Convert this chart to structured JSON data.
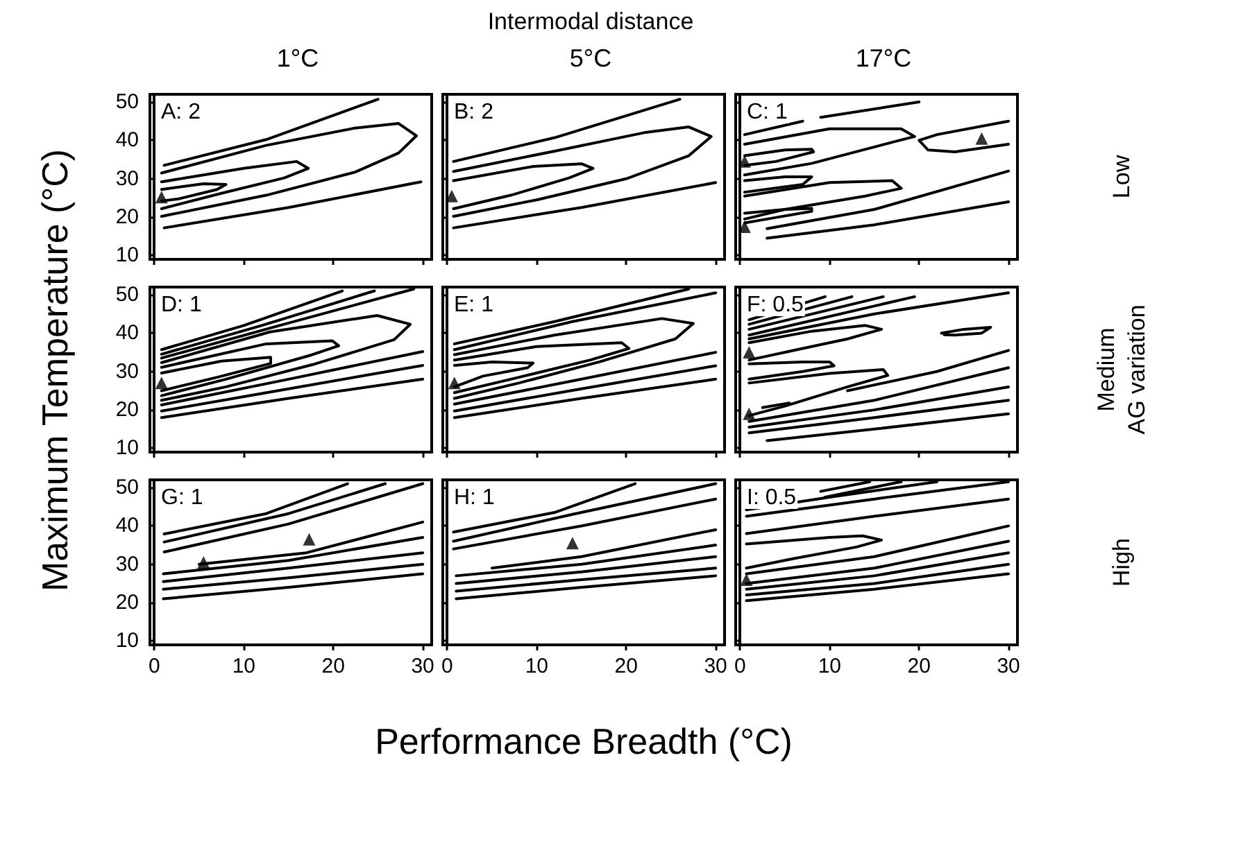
{
  "chart_data": [
    {
      "type": "line",
      "subtitle": "1°C",
      "annotations": [
        "A: 2"
      ],
      "xlim": [
        -0.5,
        31
      ],
      "ylim": [
        9,
        52
      ],
      "xticks": [
        0,
        10,
        20,
        30
      ],
      "yticks": [
        10,
        20,
        30,
        40,
        50
      ],
      "tick_labels": "y",
      "marker": "none",
      "series": [
        {
          "color": "#000000",
          "x": [
            1.1,
            12.5,
            25
          ],
          "values": [
            33.5,
            40.2,
            50.7
          ]
        },
        {
          "color": "#000000",
          "x": [
            0.8,
            12.5,
            22.4,
            27.3,
            29.3,
            27.3,
            22.4,
            12.5,
            0.8
          ],
          "values": [
            31.5,
            38.7,
            43.2,
            44.4,
            41.2,
            36.7,
            31.7,
            25.7,
            20.2
          ]
        },
        {
          "color": "#000000",
          "x": [
            0.8,
            10,
            15.9,
            17.2,
            14.5,
            7.5,
            0.8
          ],
          "values": [
            29.2,
            32.7,
            34.5,
            32.7,
            30.2,
            26.2,
            22.2
          ]
        },
        {
          "color": "#000000",
          "x": [
            0.8,
            5.5,
            8,
            7,
            2.6,
            0.8
          ],
          "values": [
            27.2,
            28.7,
            28.5,
            27.2,
            24.7,
            24.2
          ]
        },
        {
          "color": "#000000",
          "x": [
            1.1,
            15,
            29.8
          ],
          "values": [
            17.2,
            22.5,
            29.2
          ]
        },
        {
          "type": "scatter",
          "marker": "triangle",
          "color": "#000000",
          "x": [
            0.8
          ],
          "values": [
            25.2
          ]
        }
      ]
    },
    {
      "type": "line",
      "title": "Intermodal distance",
      "subtitle": "5°C",
      "annotations": [
        "B: 2"
      ],
      "xlim": [
        -0.5,
        31
      ],
      "ylim": [
        9,
        52
      ],
      "xticks": [
        0,
        10,
        20,
        30
      ],
      "yticks": [
        10,
        20,
        30,
        40,
        50
      ],
      "tick_labels": false,
      "marker": "none",
      "series": [
        {
          "color": "#000000",
          "x": [
            0.7,
            12,
            26
          ],
          "values": [
            34.5,
            40.7,
            50.7
          ]
        },
        {
          "color": "#000000",
          "x": [
            0.7,
            12,
            22,
            27,
            29.5,
            27,
            20,
            10,
            0.7
          ],
          "values": [
            31.9,
            37.2,
            42,
            43.5,
            41,
            36,
            30,
            24.5,
            20.2
          ]
        },
        {
          "color": "#000000",
          "x": [
            0.7,
            9.6,
            15,
            16.3,
            13.6,
            7.1,
            0.7
          ],
          "values": [
            29.5,
            33.2,
            33.9,
            32.7,
            30.2,
            25.7,
            22.2
          ]
        },
        {
          "color": "#000000",
          "x": [
            0.7,
            15,
            30
          ],
          "values": [
            17.2,
            22.5,
            29
          ]
        },
        {
          "type": "scatter",
          "marker": "triangle",
          "color": "#000000",
          "x": [
            0.5
          ],
          "values": [
            25.5
          ]
        }
      ]
    },
    {
      "type": "line",
      "subtitle": "17°C",
      "y2label": "Low",
      "annotations": [
        "C: 1"
      ],
      "xlim": [
        -0.5,
        31
      ],
      "ylim": [
        9,
        52
      ],
      "xticks": [
        0,
        10,
        20,
        30
      ],
      "yticks": [
        10,
        20,
        30,
        40,
        50
      ],
      "tick_labels": false,
      "marker": "none",
      "series": [
        {
          "color": "#000000",
          "x": [
            9,
            20
          ],
          "values": [
            46,
            50
          ]
        },
        {
          "color": "#000000",
          "x": [
            0.5,
            7
          ],
          "values": [
            41.5,
            45
          ]
        },
        {
          "color": "#000000",
          "x": [
            0.5,
            10,
            18,
            19.5,
            17,
            8,
            0.5
          ],
          "values": [
            39,
            43,
            43,
            41,
            39.5,
            34,
            31
          ]
        },
        {
          "color": "#000000",
          "x": [
            0.5,
            5,
            8,
            8.2,
            4,
            0.5
          ],
          "values": [
            36,
            37.5,
            37.7,
            37,
            34.5,
            33.5
          ]
        },
        {
          "color": "#000000",
          "x": [
            30,
            22,
            20,
            21,
            24,
            30
          ],
          "values": [
            45,
            41.5,
            40,
            37.5,
            37,
            39
          ]
        },
        {
          "color": "#000000",
          "x": [
            0.5,
            5,
            8,
            7,
            0.5
          ],
          "values": [
            29.5,
            30.5,
            30.5,
            28.5,
            26.5
          ]
        },
        {
          "color": "#000000",
          "x": [
            0.5,
            10,
            17,
            18,
            14,
            5,
            0.5
          ],
          "values": [
            25.5,
            29,
            29.5,
            27.5,
            25.5,
            22,
            19.5
          ]
        },
        {
          "color": "#000000",
          "x": [
            0.5,
            5,
            8,
            8,
            3,
            0.5
          ],
          "values": [
            21,
            22,
            22.3,
            21.5,
            19.5,
            18.5
          ]
        },
        {
          "color": "#000000",
          "x": [
            3,
            15,
            30
          ],
          "values": [
            17,
            22,
            32
          ]
        },
        {
          "color": "#000000",
          "x": [
            3,
            15,
            30
          ],
          "values": [
            14.5,
            18,
            24
          ]
        },
        {
          "type": "scatter",
          "marker": "triangle",
          "color": "#000000",
          "x": [
            0.5,
            0.5,
            27
          ],
          "values": [
            34.5,
            17.5,
            40.5
          ]
        }
      ]
    },
    {
      "type": "line",
      "ylabel": "Maximum Temperature (°C)",
      "annotations": [
        "D: 1"
      ],
      "xlim": [
        -0.5,
        31
      ],
      "ylim": [
        9,
        52
      ],
      "xticks": [
        0,
        10,
        20,
        30
      ],
      "yticks": [
        10,
        20,
        30,
        40,
        50
      ],
      "tick_labels": "y",
      "marker": "none",
      "series": [
        {
          "color": "#000000",
          "x": [
            0.8,
            10,
            21
          ],
          "values": [
            35.7,
            42,
            51
          ]
        },
        {
          "color": "#000000",
          "x": [
            0.8,
            12,
            24.6
          ],
          "values": [
            34.5,
            42,
            51
          ]
        },
        {
          "color": "#000000",
          "x": [
            0.8,
            14,
            29
          ],
          "values": [
            33.5,
            42,
            51.5
          ]
        },
        {
          "color": "#000000",
          "x": [
            0.8,
            12.9,
            24.9,
            28.6,
            26.8,
            18,
            8,
            0.8
          ],
          "values": [
            32.3,
            40.3,
            44.6,
            42.3,
            38.3,
            32,
            26,
            22.5
          ]
        },
        {
          "color": "#000000",
          "x": [
            0.8,
            12.5,
            19.9,
            20.6,
            17.4,
            8,
            0.8
          ],
          "values": [
            31.1,
            37.2,
            38,
            36.7,
            34.2,
            28,
            23.7
          ]
        },
        {
          "color": "#000000",
          "x": [
            0.8,
            7.5,
            13,
            13,
            7,
            0.8
          ],
          "values": [
            29.6,
            32.7,
            33.7,
            32.1,
            28.5,
            25
          ]
        },
        {
          "color": "#000000",
          "x": [
            0.8,
            15,
            30
          ],
          "values": [
            21.3,
            28,
            35.2
          ]
        },
        {
          "color": "#000000",
          "x": [
            0.8,
            15,
            30
          ],
          "values": [
            19.7,
            25.5,
            31.6
          ]
        },
        {
          "color": "#000000",
          "x": [
            0.8,
            15,
            30
          ],
          "values": [
            18,
            23,
            28
          ]
        },
        {
          "type": "scatter",
          "marker": "triangle",
          "color": "#000000",
          "x": [
            0.8
          ],
          "values": [
            27
          ]
        }
      ]
    },
    {
      "type": "line",
      "annotations": [
        "E: 1"
      ],
      "xlim": [
        -0.5,
        31
      ],
      "ylim": [
        9,
        52
      ],
      "xticks": [
        0,
        10,
        20,
        30
      ],
      "yticks": [
        10,
        20,
        30,
        40,
        50
      ],
      "tick_labels": false,
      "marker": "none",
      "series": [
        {
          "color": "#000000",
          "x": [
            0.8,
            12,
            27
          ],
          "values": [
            37.2,
            43,
            51.5
          ]
        },
        {
          "color": "#000000",
          "x": [
            0.8,
            14,
            30
          ],
          "values": [
            35.7,
            43,
            50.5
          ]
        },
        {
          "color": "#000000",
          "x": [
            0.8,
            12,
            24,
            27.5,
            25.5,
            17,
            8,
            0.8
          ],
          "values": [
            34.4,
            39.5,
            43.8,
            42.5,
            38.5,
            32.5,
            27,
            23
          ]
        },
        {
          "color": "#000000",
          "x": [
            0.8,
            10,
            19.5,
            20.3,
            16,
            8,
            0.8
          ],
          "values": [
            33,
            36.5,
            37.5,
            36,
            33,
            28.5,
            24.5
          ]
        },
        {
          "color": "#000000",
          "x": [
            0.8,
            5,
            9.6,
            9,
            4,
            0.8
          ],
          "values": [
            31.6,
            32.5,
            32.2,
            31,
            28.8,
            26
          ]
        },
        {
          "color": "#000000",
          "x": [
            0.8,
            15,
            30
          ],
          "values": [
            21.5,
            28,
            35
          ]
        },
        {
          "color": "#000000",
          "x": [
            0.8,
            15,
            30
          ],
          "values": [
            19.7,
            25.5,
            31.5
          ]
        },
        {
          "color": "#000000",
          "x": [
            0.8,
            15,
            30
          ],
          "values": [
            18,
            23,
            28
          ]
        },
        {
          "type": "scatter",
          "marker": "triangle",
          "color": "#000000",
          "x": [
            0.8
          ],
          "values": [
            27
          ]
        }
      ]
    },
    {
      "type": "line",
      "y2label": "Medium\nAG variation",
      "annotations": [
        "F: 0.5"
      ],
      "xlim": [
        -0.5,
        31
      ],
      "ylim": [
        9,
        52
      ],
      "xticks": [
        0,
        10,
        20,
        30
      ],
      "yticks": [
        10,
        20,
        30,
        40,
        50
      ],
      "tick_labels": false,
      "marker": "none",
      "series": [
        {
          "color": "#000000",
          "x": [
            1,
            9.5
          ],
          "values": [
            43.5,
            49.5
          ]
        },
        {
          "color": "#000000",
          "x": [
            1,
            12.5
          ],
          "values": [
            42.3,
            49.5
          ]
        },
        {
          "color": "#000000",
          "x": [
            1,
            16
          ],
          "values": [
            41,
            49.5
          ]
        },
        {
          "color": "#000000",
          "x": [
            1,
            19.5
          ],
          "values": [
            39.5,
            49.5
          ]
        },
        {
          "color": "#000000",
          "x": [
            1,
            15,
            30
          ],
          "values": [
            38.5,
            45,
            50.5
          ]
        },
        {
          "color": "#000000",
          "x": [
            1,
            8,
            14,
            15.8,
            12,
            6,
            1
          ],
          "values": [
            37.5,
            40.5,
            42,
            41,
            38.5,
            35.5,
            33
          ]
        },
        {
          "color": "#000000",
          "x": [
            22.5,
            25,
            28,
            27,
            24,
            22.8
          ],
          "values": [
            40,
            41,
            41.5,
            40,
            39.5,
            39.6
          ]
        },
        {
          "color": "#000000",
          "x": [
            1,
            7,
            10,
            10.5,
            7,
            1
          ],
          "values": [
            32,
            32.5,
            32.5,
            31.5,
            30,
            28
          ]
        },
        {
          "color": "#000000",
          "x": [
            1,
            10,
            16,
            16.5,
            12,
            5,
            1
          ],
          "values": [
            27,
            29.5,
            30.5,
            29,
            26,
            21,
            18.5
          ]
        },
        {
          "color": "#000000",
          "x": [
            2.5,
            5.5
          ],
          "values": [
            20.6,
            21.8
          ]
        },
        {
          "color": "#000000",
          "x": [
            12,
            22,
            30
          ],
          "values": [
            25,
            30,
            35.5
          ]
        },
        {
          "color": "#000000",
          "x": [
            1,
            15,
            30
          ],
          "values": [
            17,
            22.5,
            31
          ]
        },
        {
          "color": "#000000",
          "x": [
            1,
            15,
            30
          ],
          "values": [
            15.5,
            20,
            26
          ]
        },
        {
          "color": "#000000",
          "x": [
            1,
            15,
            30
          ],
          "values": [
            14,
            18,
            22.5
          ]
        },
        {
          "color": "#000000",
          "x": [
            3,
            15,
            30
          ],
          "values": [
            12,
            15,
            19
          ]
        },
        {
          "type": "scatter",
          "marker": "triangle",
          "color": "#000000",
          "x": [
            1,
            1
          ],
          "values": [
            35,
            19
          ]
        }
      ]
    },
    {
      "type": "line",
      "annotations": [
        "G: 1"
      ],
      "xlim": [
        -0.5,
        31
      ],
      "ylim": [
        9,
        52
      ],
      "xticks": [
        0,
        10,
        20,
        30
      ],
      "yticks": [
        10,
        20,
        30,
        40,
        50
      ],
      "marker": "none",
      "series": [
        {
          "color": "#000000",
          "x": [
            1.1,
            12.5,
            21.6
          ],
          "values": [
            37.9,
            43.2,
            51
          ]
        },
        {
          "color": "#000000",
          "x": [
            1.1,
            15,
            25.8
          ],
          "values": [
            35.8,
            43.2,
            51
          ]
        },
        {
          "color": "#000000",
          "x": [
            1.1,
            15,
            30
          ],
          "values": [
            33.2,
            40.5,
            51
          ]
        },
        {
          "color": "#000000",
          "x": [
            5,
            17,
            30
          ],
          "values": [
            30,
            33,
            41
          ]
        },
        {
          "color": "#000000",
          "x": [
            1,
            15,
            30
          ],
          "values": [
            27.5,
            31,
            37
          ]
        },
        {
          "color": "#000000",
          "x": [
            1,
            15,
            30
          ],
          "values": [
            25.5,
            29,
            33
          ]
        },
        {
          "color": "#000000",
          "x": [
            1,
            15,
            30
          ],
          "values": [
            23.5,
            26.5,
            30
          ]
        },
        {
          "color": "#000000",
          "x": [
            1,
            15,
            30
          ],
          "values": [
            21,
            24,
            27.5
          ]
        },
        {
          "type": "scatter",
          "marker": "triangle",
          "color": "#000000",
          "x": [
            5.5,
            17.3
          ],
          "values": [
            30.5,
            36.5
          ]
        }
      ]
    },
    {
      "type": "line",
      "xlabel": "Performance Breadth (°C)",
      "annotations": [
        "H: 1"
      ],
      "xlim": [
        -0.5,
        31
      ],
      "ylim": [
        9,
        52
      ],
      "xticks": [
        0,
        10,
        20,
        30
      ],
      "yticks": [
        10,
        20,
        30,
        40,
        50
      ],
      "tick_labels": "x",
      "marker": "none",
      "series": [
        {
          "color": "#000000",
          "x": [
            0.7,
            12,
            21
          ],
          "values": [
            38.4,
            43.5,
            51
          ]
        },
        {
          "color": "#000000",
          "x": [
            0.7,
            14,
            30
          ],
          "values": [
            36,
            43,
            51
          ]
        },
        {
          "color": "#000000",
          "x": [
            0.7,
            15,
            30
          ],
          "values": [
            34,
            40,
            47
          ]
        },
        {
          "color": "#000000",
          "x": [
            5,
            15,
            30
          ],
          "values": [
            29,
            32,
            39
          ]
        },
        {
          "color": "#000000",
          "x": [
            1,
            15,
            30
          ],
          "values": [
            27,
            30,
            35
          ]
        },
        {
          "color": "#000000",
          "x": [
            1,
            15,
            30
          ],
          "values": [
            25,
            28,
            32
          ]
        },
        {
          "color": "#000000",
          "x": [
            1,
            15,
            30
          ],
          "values": [
            23,
            26,
            29
          ]
        },
        {
          "color": "#000000",
          "x": [
            1,
            15,
            30
          ],
          "values": [
            21,
            24,
            27
          ]
        },
        {
          "type": "scatter",
          "marker": "triangle",
          "color": "#000000",
          "x": [
            14
          ],
          "values": [
            35.5
          ]
        }
      ]
    },
    {
      "type": "line",
      "y2label": "High",
      "annotations": [
        "I: 0.5"
      ],
      "xlim": [
        -0.5,
        31
      ],
      "ylim": [
        9,
        52
      ],
      "xticks": [
        0,
        10,
        20,
        30
      ],
      "yticks": [
        10,
        20,
        30,
        40,
        50
      ],
      "tick_labels": "x",
      "marker": "none",
      "series": [
        {
          "color": "#000000",
          "x": [
            9,
            14.5
          ],
          "values": [
            49,
            51.5
          ]
        },
        {
          "color": "#000000",
          "x": [
            9.5,
            18
          ],
          "values": [
            47.5,
            51.5
          ]
        },
        {
          "color": "#000000",
          "x": [
            0.7,
            10,
            22
          ],
          "values": [
            44.2,
            47.5,
            51.5
          ]
        },
        {
          "color": "#000000",
          "x": [
            0.7,
            15,
            30
          ],
          "values": [
            42.5,
            47,
            51.5
          ]
        },
        {
          "color": "#000000",
          "x": [
            0.7,
            15,
            30
          ],
          "values": [
            38,
            42.5,
            47
          ]
        },
        {
          "color": "#000000",
          "x": [
            0.7,
            10,
            13.7,
            15.8,
            13,
            6,
            0.7
          ],
          "values": [
            35.3,
            37,
            37.4,
            36.3,
            34.5,
            31.5,
            29
          ]
        },
        {
          "color": "#000000",
          "x": [
            0.7,
            15,
            30
          ],
          "values": [
            27.5,
            32,
            40
          ]
        },
        {
          "color": "#000000",
          "x": [
            0.7,
            15,
            30
          ],
          "values": [
            25,
            29,
            36
          ]
        },
        {
          "color": "#000000",
          "x": [
            0.7,
            15,
            30
          ],
          "values": [
            23.5,
            27,
            33
          ]
        },
        {
          "color": "#000000",
          "x": [
            0.7,
            15,
            30
          ],
          "values": [
            22,
            25,
            30
          ]
        },
        {
          "color": "#000000",
          "x": [
            0.7,
            15,
            30
          ],
          "values": [
            20.5,
            23.5,
            27.5
          ]
        },
        {
          "type": "scatter",
          "marker": "triangle",
          "color": "#000000",
          "x": [
            0.7
          ],
          "values": [
            26
          ]
        }
      ]
    }
  ]
}
